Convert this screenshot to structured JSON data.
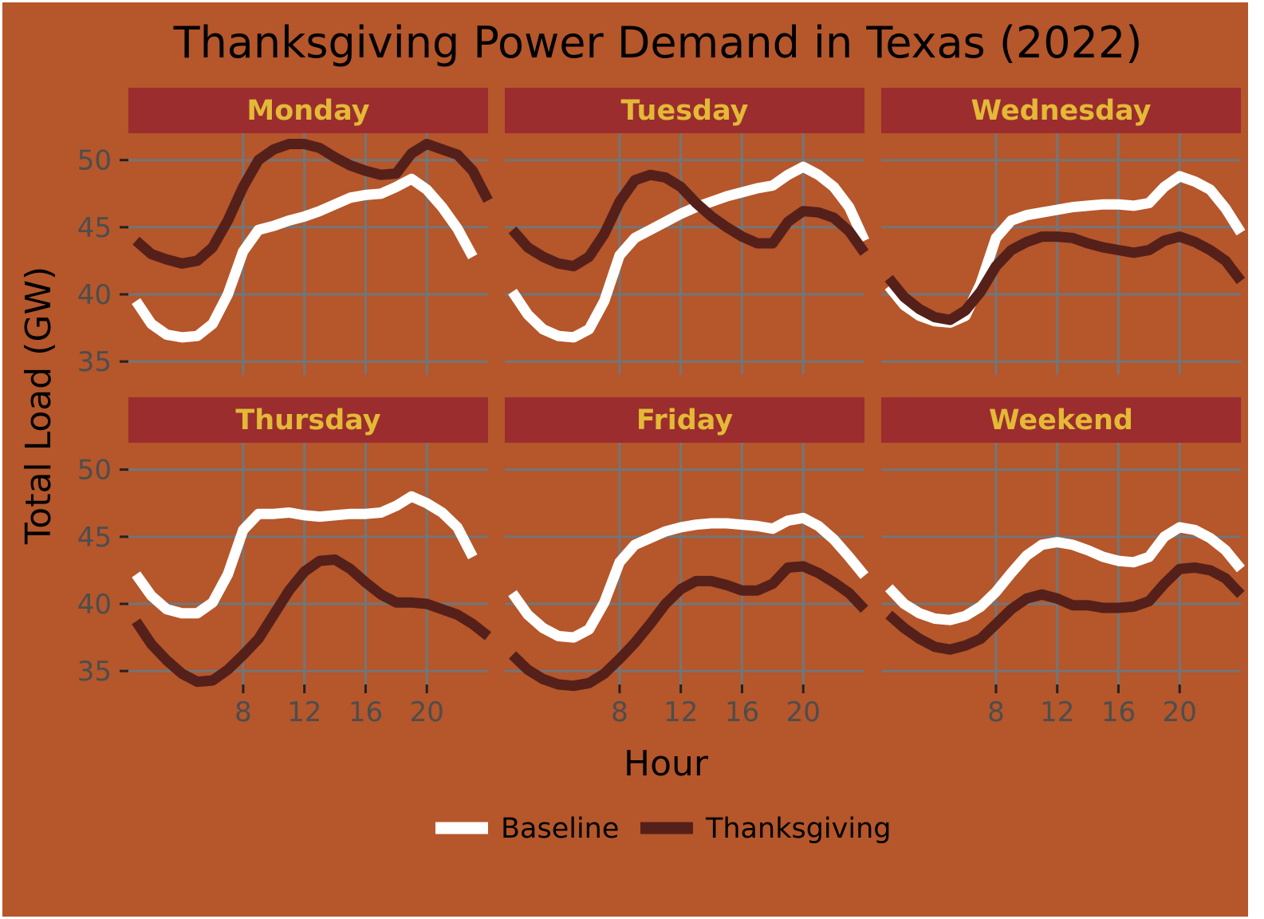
{
  "chart_data": {
    "type": "line",
    "title": "Thanksgiving Power Demand in Texas (2022)",
    "xlabel": "Hour",
    "ylabel": "Total Load (GW)",
    "x_ticks": [
      8,
      12,
      16,
      20
    ],
    "y_ticks": [
      35,
      40,
      45,
      50
    ],
    "xlim": [
      0.5,
      24
    ],
    "ylim": [
      34,
      52
    ],
    "grid": true,
    "legend_position": "bottom",
    "colors": {
      "background": "#b5562b",
      "strip": "#9b2d2f",
      "strip_text": "#e3b936",
      "grid": "#757575",
      "baseline": "#ffffff",
      "thanksgiving": "#55201a"
    },
    "hours": [
      1,
      2,
      3,
      4,
      5,
      6,
      7,
      8,
      9,
      10,
      11,
      12,
      13,
      14,
      15,
      16,
      17,
      18,
      19,
      20,
      21,
      22,
      23,
      24
    ],
    "panels": [
      {
        "label": "Monday",
        "series": [
          {
            "name": "Baseline",
            "values": [
              39.5,
              37.8,
              37.0,
              36.8,
              36.9,
              37.8,
              40.0,
              43.2,
              44.8,
              45.1,
              45.5,
              45.8,
              46.2,
              46.7,
              47.2,
              47.4,
              47.5,
              48.0,
              48.6,
              47.8,
              46.5,
              44.9,
              42.8,
              null
            ]
          },
          {
            "name": "Thanksgiving",
            "values": [
              44.0,
              43.0,
              42.6,
              42.3,
              42.5,
              43.5,
              45.5,
              48.0,
              50.0,
              50.8,
              51.2,
              51.2,
              50.9,
              50.2,
              49.6,
              49.2,
              48.9,
              49.0,
              50.5,
              51.2,
              50.8,
              50.4,
              49.2,
              47.0
            ]
          }
        ]
      },
      {
        "label": "Tuesday",
        "series": [
          {
            "name": "Baseline",
            "values": [
              40.2,
              38.5,
              37.4,
              36.9,
              36.8,
              37.4,
              39.5,
              42.9,
              44.2,
              44.8,
              45.4,
              46.0,
              46.5,
              46.9,
              47.3,
              47.6,
              47.9,
              48.1,
              48.9,
              49.5,
              48.9,
              48.0,
              46.5,
              44.0
            ]
          },
          {
            "name": "Thanksgiving",
            "values": [
              44.8,
              43.5,
              42.8,
              42.3,
              42.1,
              42.8,
              44.5,
              46.9,
              48.5,
              48.9,
              48.7,
              48.0,
              46.8,
              45.8,
              45.0,
              44.3,
              43.8,
              43.8,
              45.4,
              46.2,
              46.1,
              45.7,
              44.7,
              43.1
            ]
          }
        ]
      },
      {
        "label": "Wednesday",
        "series": [
          {
            "name": "Baseline",
            "values": [
              40.6,
              39.2,
              38.4,
              38.0,
              37.9,
              38.4,
              40.8,
              44.2,
              45.5,
              45.9,
              46.1,
              46.3,
              46.5,
              46.6,
              46.7,
              46.7,
              46.6,
              46.8,
              48.0,
              48.8,
              48.4,
              47.8,
              46.4,
              44.6
            ]
          },
          {
            "name": "Thanksgiving",
            "values": [
              41.2,
              39.8,
              38.9,
              38.3,
              38.1,
              38.8,
              40.2,
              42.1,
              43.3,
              43.9,
              44.3,
              44.3,
              44.2,
              43.8,
              43.5,
              43.3,
              43.1,
              43.3,
              44.0,
              44.3,
              43.9,
              43.3,
              42.5,
              41.0
            ]
          }
        ]
      },
      {
        "label": "Thursday",
        "series": [
          {
            "name": "Baseline",
            "values": [
              42.2,
              40.6,
              39.6,
              39.3,
              39.3,
              40.1,
              42.2,
              45.5,
              46.7,
              46.7,
              46.8,
              46.6,
              46.5,
              46.6,
              46.7,
              46.7,
              46.8,
              47.3,
              48.0,
              47.5,
              46.8,
              45.7,
              43.5,
              null
            ]
          },
          {
            "name": "Thanksgiving",
            "values": [
              38.7,
              37.0,
              35.8,
              34.8,
              34.2,
              34.3,
              35.1,
              36.2,
              37.4,
              39.2,
              41.0,
              42.4,
              43.2,
              43.3,
              42.6,
              41.6,
              40.7,
              40.1,
              40.1,
              40.0,
              39.6,
              39.2,
              38.5,
              37.6
            ]
          }
        ]
      },
      {
        "label": "Friday",
        "series": [
          {
            "name": "Baseline",
            "values": [
              40.8,
              39.2,
              38.2,
              37.6,
              37.5,
              38.1,
              40.1,
              43.1,
              44.4,
              44.9,
              45.4,
              45.7,
              45.9,
              46.0,
              46.0,
              45.9,
              45.8,
              45.6,
              46.2,
              46.4,
              45.8,
              44.8,
              43.5,
              42.1
            ]
          },
          {
            "name": "Thanksgiving",
            "values": [
              36.2,
              35.1,
              34.4,
              34.0,
              33.9,
              34.1,
              34.8,
              35.9,
              37.1,
              38.5,
              40.0,
              41.1,
              41.7,
              41.7,
              41.4,
              41.0,
              41.0,
              41.5,
              42.7,
              42.8,
              42.3,
              41.6,
              40.8,
              39.6
            ]
          }
        ]
      },
      {
        "label": "Weekend",
        "series": [
          {
            "name": "Baseline",
            "values": [
              41.2,
              40.0,
              39.3,
              38.9,
              38.8,
              39.1,
              39.8,
              40.9,
              42.3,
              43.6,
              44.4,
              44.6,
              44.4,
              44.0,
              43.5,
              43.2,
              43.1,
              43.5,
              45.0,
              45.7,
              45.5,
              44.9,
              44.0,
              42.6
            ]
          },
          {
            "name": "Thanksgiving",
            "values": [
              39.2,
              38.2,
              37.4,
              36.8,
              36.6,
              36.9,
              37.4,
              38.5,
              39.6,
              40.4,
              40.7,
              40.4,
              39.9,
              39.9,
              39.7,
              39.7,
              39.8,
              40.2,
              41.5,
              42.6,
              42.7,
              42.5,
              41.9,
              40.7
            ]
          }
        ]
      }
    ]
  }
}
